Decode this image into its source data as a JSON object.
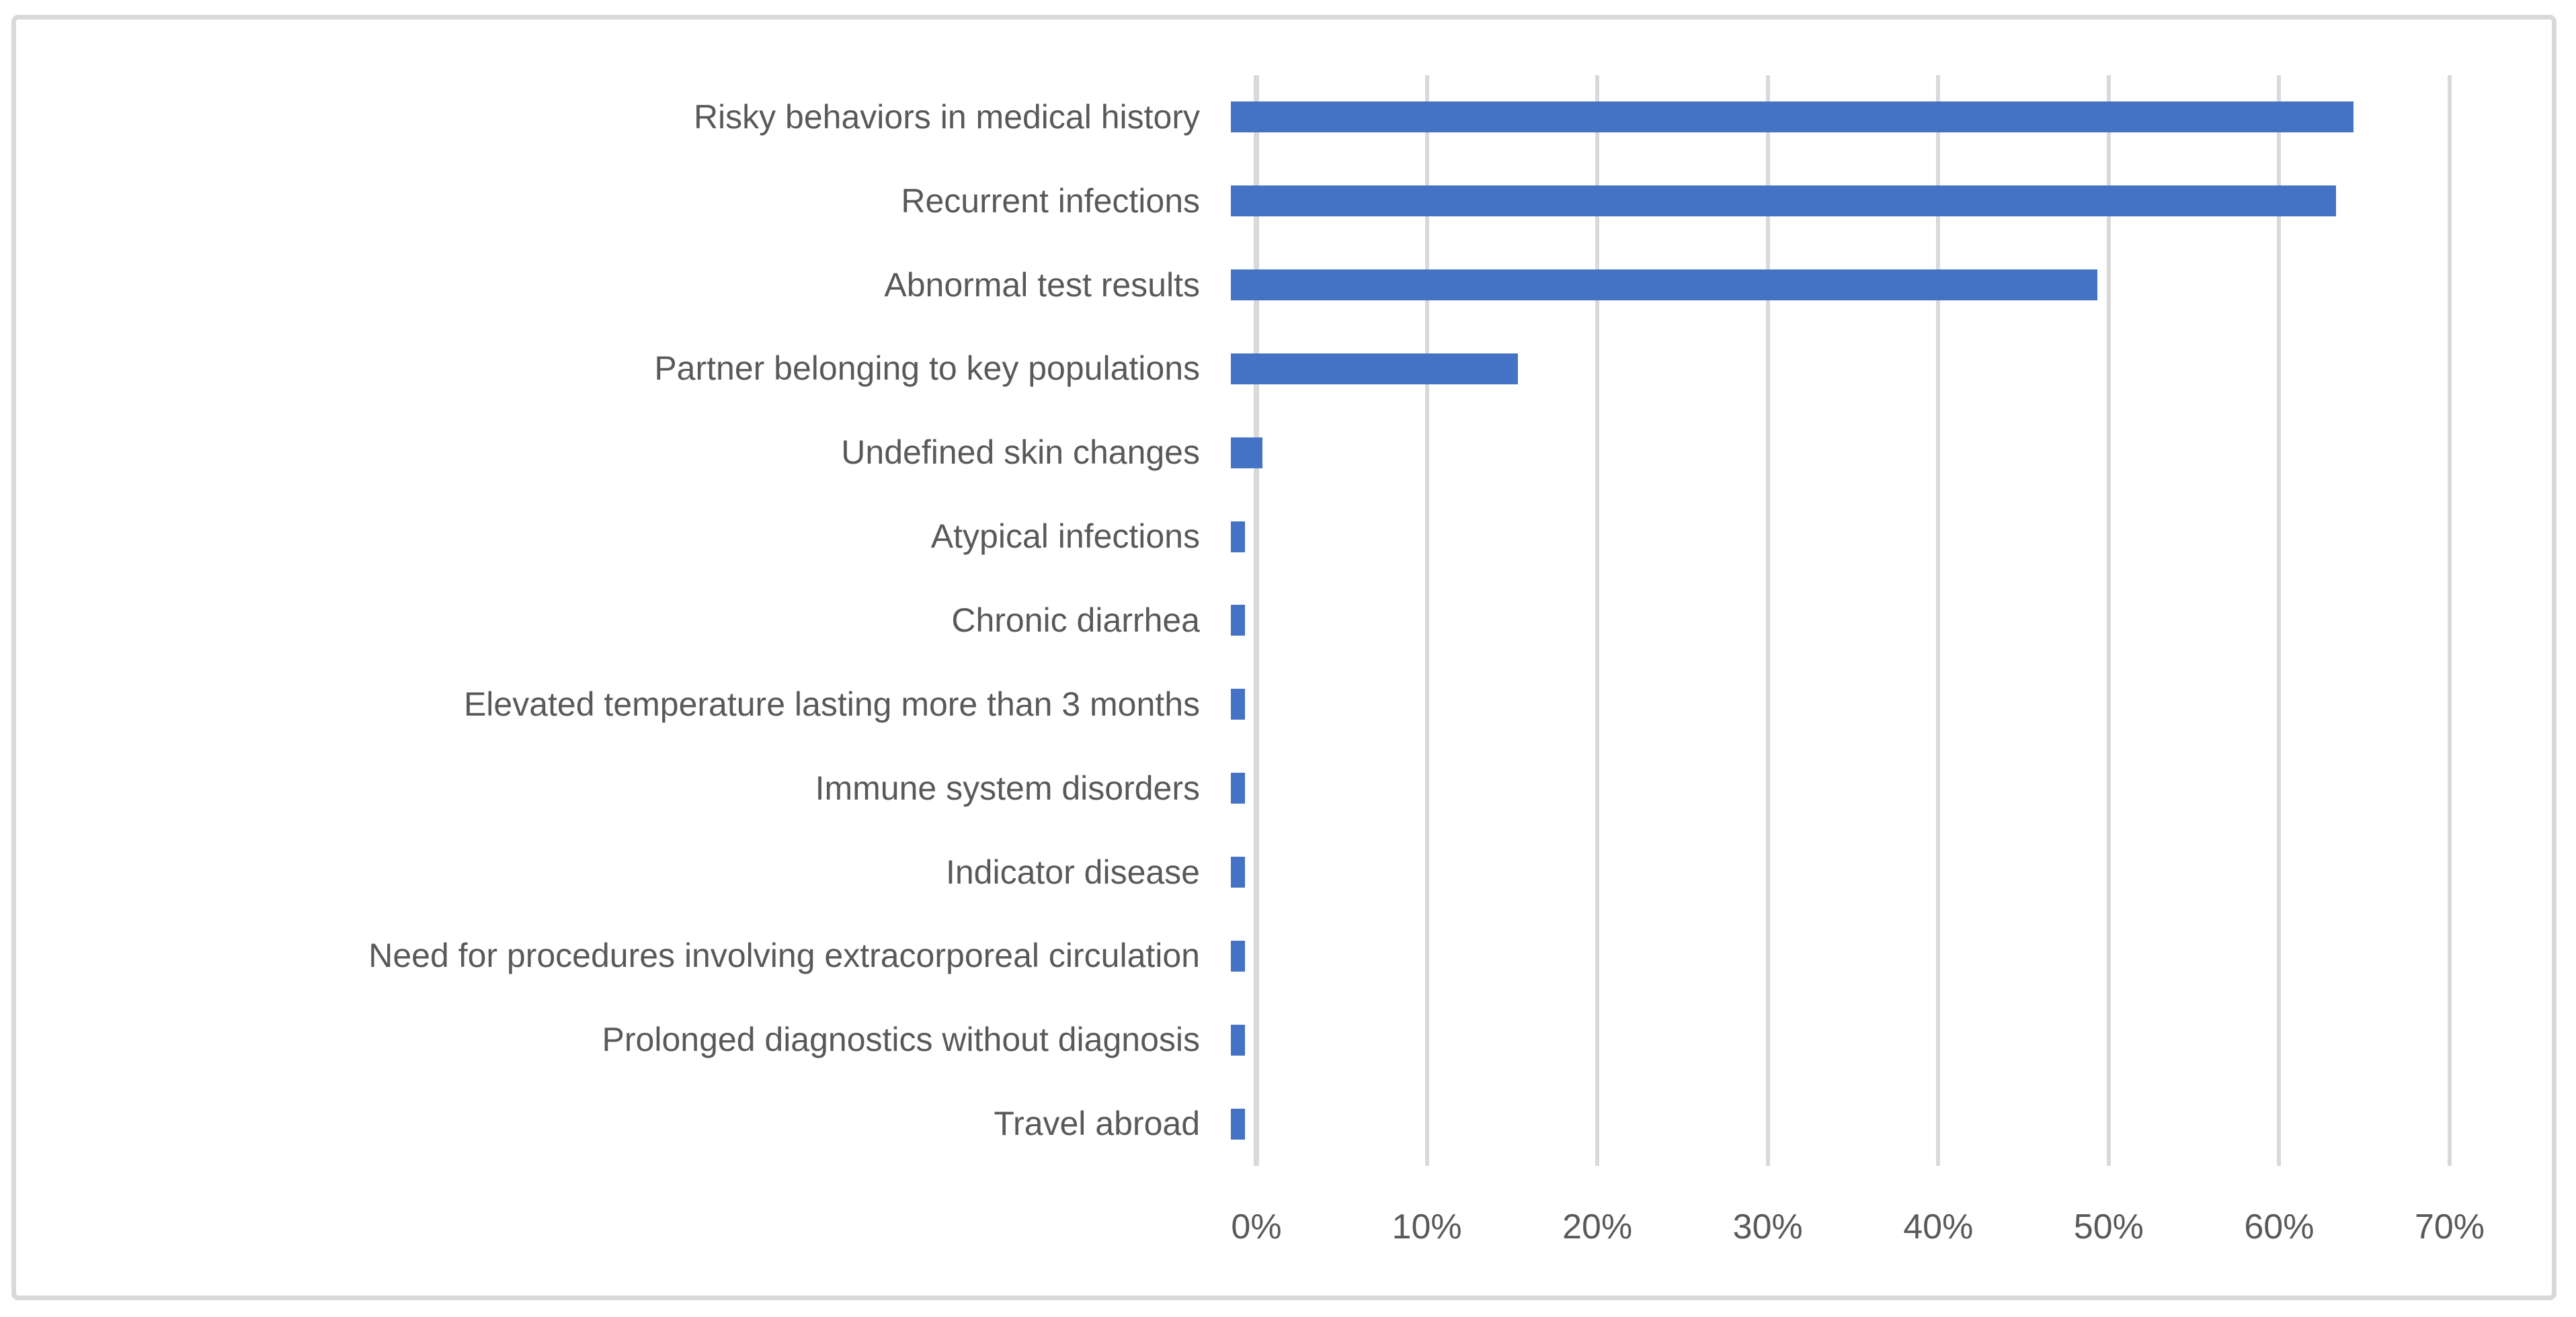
{
  "chart_data": {
    "type": "bar",
    "orientation": "horizontal",
    "title": "",
    "xlabel": "",
    "ylabel": "",
    "categories": [
      "Risky behaviors in medical history",
      "Recurrent infections",
      "Abnormal test results",
      "Partner belonging to key populations",
      "Undefined skin changes",
      "Atypical infections",
      "Chronic diarrhea",
      "Elevated temperature lasting more than 3 months",
      "Immune system disorders",
      "Indicator disease",
      "Need for procedures involving extracorporeal circulation",
      "Prolonged diagnostics without diagnosis",
      "Travel abroad"
    ],
    "values": [
      66,
      65,
      51,
      17,
      2,
      1,
      1,
      1,
      1,
      1,
      1,
      1,
      1
    ],
    "value_unit": "%",
    "xlim": [
      0,
      70
    ],
    "x_tick_step": 10,
    "x_ticks": [
      "0%",
      "10%",
      "20%",
      "30%",
      "40%",
      "50%",
      "60%",
      "70%"
    ],
    "grid": true,
    "legend": false,
    "colors": {
      "bar": "#4472C4",
      "gridline": "#D9D9D9",
      "axis_line": "#D9D9D9",
      "frame_border": "#D9D9D9",
      "text": "#595959",
      "background": "#FFFFFF"
    }
  }
}
